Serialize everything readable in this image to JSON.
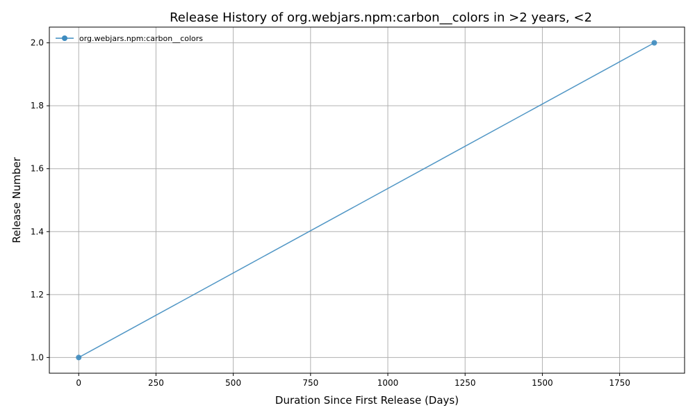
{
  "chart_data": {
    "type": "line",
    "title": "Release History of org.webjars.npm:carbon__colors in >2 years, <2",
    "xlabel": "Duration Since First Release (Days)",
    "ylabel": "Release Number",
    "xlim": [
      -95,
      1960
    ],
    "ylim": [
      0.95,
      2.05
    ],
    "xticks": [
      0,
      250,
      500,
      750,
      1000,
      1250,
      1500,
      1750
    ],
    "yticks": [
      1.0,
      1.2,
      1.4,
      1.6,
      1.8,
      2.0
    ],
    "grid": true,
    "legend_position": "top-left",
    "series": [
      {
        "name": "org.webjars.npm:carbon__colors",
        "color": "#3d8bbf",
        "marker": "circle",
        "x": [
          0,
          1862
        ],
        "y": [
          1.0,
          2.0
        ]
      }
    ]
  }
}
